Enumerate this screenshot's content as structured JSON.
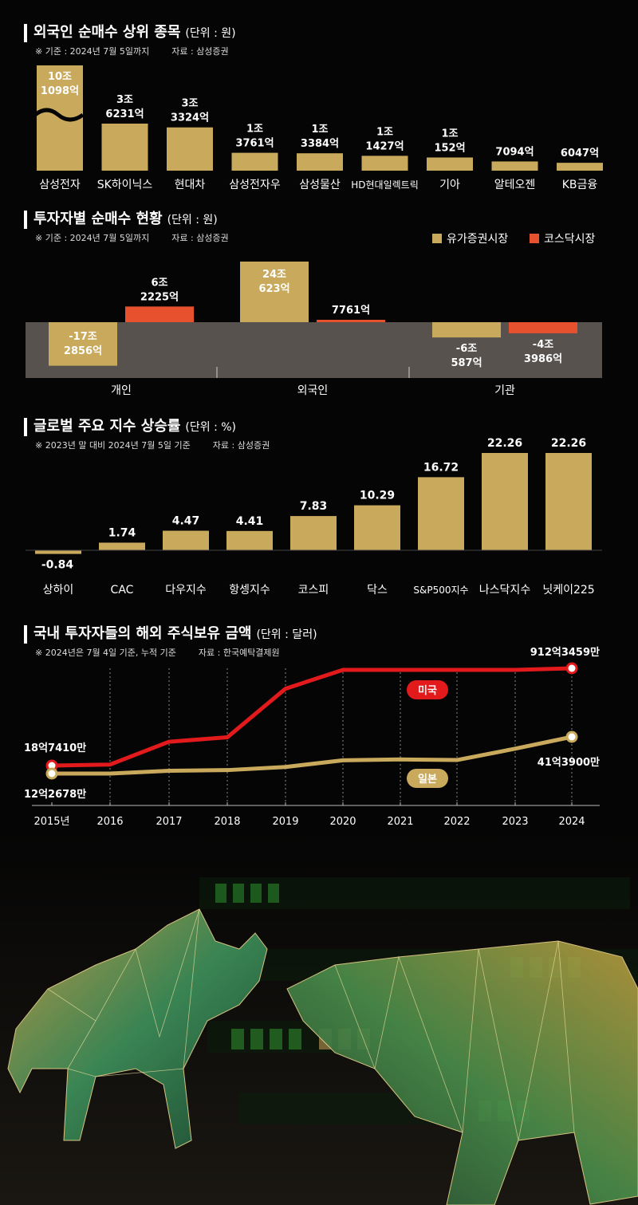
{
  "colors": {
    "gold": "#c9a95c",
    "red": "#e8512d",
    "us_line": "#e31a1c",
    "background": "#050505",
    "neutral_band": "#57524d"
  },
  "chart_data": [
    {
      "type": "bar",
      "title": "외국인 순매수 상위 종목",
      "unit": "(단위 : 원)",
      "note": "※ 기준 : 2024년 7월 5일까지",
      "source": "자료 : 삼성증권",
      "categories": [
        "삼성전자",
        "SK하이닉스",
        "현대차",
        "삼성전자우",
        "삼성물산",
        "HD현대일렉트릭",
        "기아",
        "알테오젠",
        "KB금융"
      ],
      "values": [
        101098,
        36231,
        33324,
        13761,
        13384,
        11427,
        10152,
        7094,
        6047
      ],
      "value_labels": [
        [
          "10조",
          "1098억"
        ],
        [
          "3조",
          "6231억"
        ],
        [
          "3조",
          "3324억"
        ],
        [
          "1조",
          "3761억"
        ],
        [
          "1조",
          "3384억"
        ],
        [
          "1조",
          "1427억"
        ],
        [
          "1조",
          "152억"
        ],
        [
          "7094억"
        ],
        [
          "6047억"
        ]
      ],
      "broken_axis_first_bar": true
    },
    {
      "type": "bar",
      "title": "투자자별 순매수 현황",
      "unit": "(단위 : 원)",
      "note": "※ 기준 : 2024년 7월 5일까지",
      "source": "자료 : 삼성증권",
      "legend_position": "top-right",
      "categories": [
        "개인",
        "외국인",
        "기관"
      ],
      "series": [
        {
          "name": "유가증권시장",
          "values": [
            -172856,
            240623,
            -60587
          ],
          "value_labels": [
            [
              "-17조",
              "2856억"
            ],
            [
              "24조",
              "623억"
            ],
            [
              "-6조",
              "587억"
            ]
          ]
        },
        {
          "name": "코스닥시장",
          "values": [
            62225,
            7761,
            -43986
          ],
          "value_labels": [
            [
              "6조",
              "2225억"
            ],
            [
              "7761억"
            ],
            [
              "-4조",
              "3986억"
            ]
          ]
        }
      ]
    },
    {
      "type": "bar",
      "title": "글로벌 주요 지수 상승률",
      "unit": "(단위 : %)",
      "note": "※ 2023년 말 대비 2024년 7월 5일 기준",
      "source": "자료 : 삼성증권",
      "categories": [
        "상하이",
        "CAC",
        "다우지수",
        "항셍지수",
        "코스피",
        "닥스",
        "S&P500지수",
        "나스닥지수",
        "닛케이225"
      ],
      "values": [
        -0.84,
        1.74,
        4.47,
        4.41,
        7.83,
        10.29,
        16.72,
        22.26,
        22.26
      ],
      "value_labels": [
        "-0.84",
        "1.74",
        "4.47",
        "4.41",
        "7.83",
        "10.29",
        "16.72",
        "22.26",
        "22.26"
      ]
    },
    {
      "type": "line",
      "title": "국내 투자자들의 해외 주식보유 금액",
      "unit": "(단위 : 달러)",
      "note": "※ 2024년은 7월 4일 기준, 누적 기준",
      "source": "자료 : 한국예탁결제원",
      "x": [
        "2015년",
        "2016",
        "2017",
        "2018",
        "2019",
        "2020",
        "2021",
        "2022",
        "2023",
        "2024"
      ],
      "series": [
        {
          "name": "미국",
          "values": [
            18.74,
            19.5,
            36.5,
            39.8,
            76,
            90,
            90,
            90,
            90,
            912.3459
          ]
        },
        {
          "name": "일본",
          "values": [
            12.2678,
            12.3,
            14.5,
            15.0,
            17.5,
            22.8,
            23.5,
            23.0,
            32.0,
            41.39
          ]
        }
      ],
      "end_labels": {
        "us_start": "18억7410만",
        "us_end": "912억3459만",
        "jp_start": "12억2678만",
        "jp_end": "41억3900만"
      }
    }
  ]
}
